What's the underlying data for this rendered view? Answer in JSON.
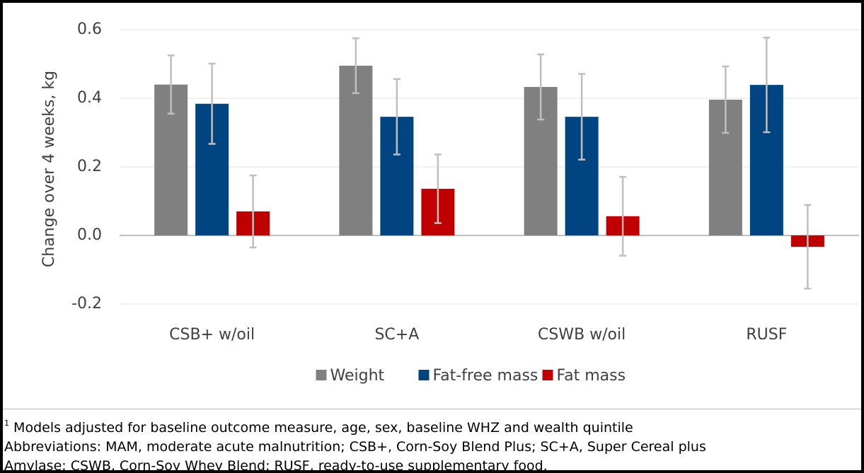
{
  "chart_data": {
    "type": "bar",
    "y_label": "Change over 4 weeks, kg",
    "categories": [
      "CSB+ w/oil",
      "SC+A",
      "CSWB w/oil",
      "RUSF"
    ],
    "series": [
      {
        "name": "Weight",
        "color": "#808080",
        "values": [
          0.44,
          0.495,
          0.433,
          0.396
        ],
        "errors": [
          0.085,
          0.08,
          0.095,
          0.097
        ]
      },
      {
        "name": "Fat-free mass",
        "color": "#004481",
        "values": [
          0.384,
          0.346,
          0.346,
          0.439
        ],
        "errors": [
          0.117,
          0.11,
          0.125,
          0.138
        ]
      },
      {
        "name": "Fat mass",
        "color": "#c00000",
        "values": [
          0.07,
          0.136,
          0.056,
          -0.033
        ],
        "errors": [
          0.105,
          0.1,
          0.115,
          0.122
        ]
      }
    ],
    "ylim": [
      -0.2,
      0.6
    ],
    "yticks": [
      -0.2,
      {
        "value": 0,
        "label": "0.0"
      },
      0.2,
      0.4,
      0.6
    ],
    "grid": true,
    "legend": "bottom"
  },
  "footnote": {
    "marker": "1",
    "lines": [
      "Models adjusted for baseline outcome measure, age, sex, baseline WHZ and wealth quintile",
      "Abbreviations: MAM, moderate acute malnutrition; CSB+, Corn-Soy Blend Plus; SC+A, Super Cereal plus",
      "Amylase; CSWB, Corn-Soy Whey Blend; RUSF, ready-to-use supplementary food."
    ]
  }
}
